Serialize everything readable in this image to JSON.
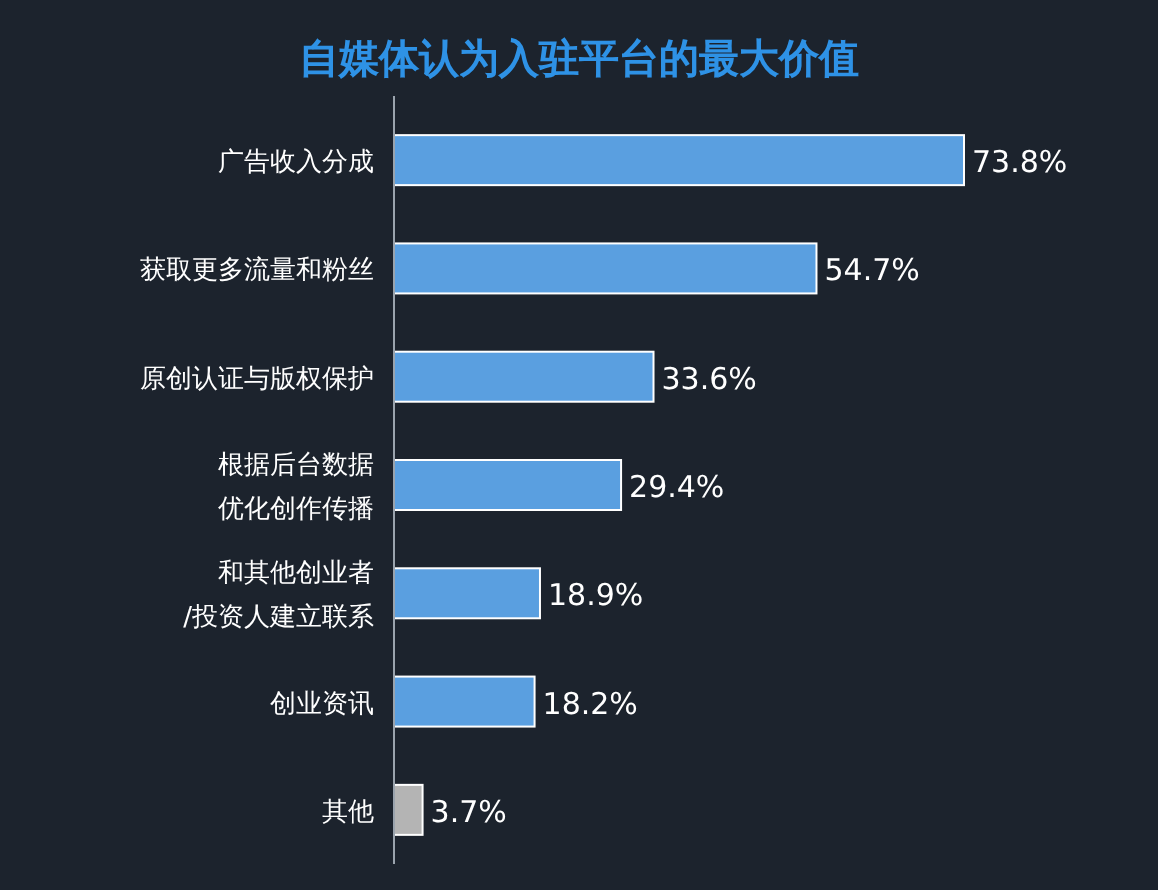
{
  "chart_data": {
    "type": "bar",
    "orientation": "horizontal",
    "title": "自媒体认为入驻平台的最大价值",
    "categories": [
      "广告收入分成",
      "获取更多流量和粉丝",
      "原创认证与版权保护",
      "根据后台数据优化创作传播",
      "和其他创业者/投资人建立联系",
      "创业资讯",
      "其他"
    ],
    "values": [
      73.8,
      54.7,
      33.6,
      29.4,
      18.9,
      18.2,
      3.7
    ],
    "value_labels": [
      "73.8%",
      "54.7%",
      "33.6%",
      "29.4%",
      "18.9%",
      "18.2%",
      "3.7%"
    ],
    "colors": [
      "#5a9fe0",
      "#5a9fe0",
      "#5a9fe0",
      "#5a9fe0",
      "#5a9fe0",
      "#5a9fe0",
      "#b4b4b4"
    ]
  }
}
